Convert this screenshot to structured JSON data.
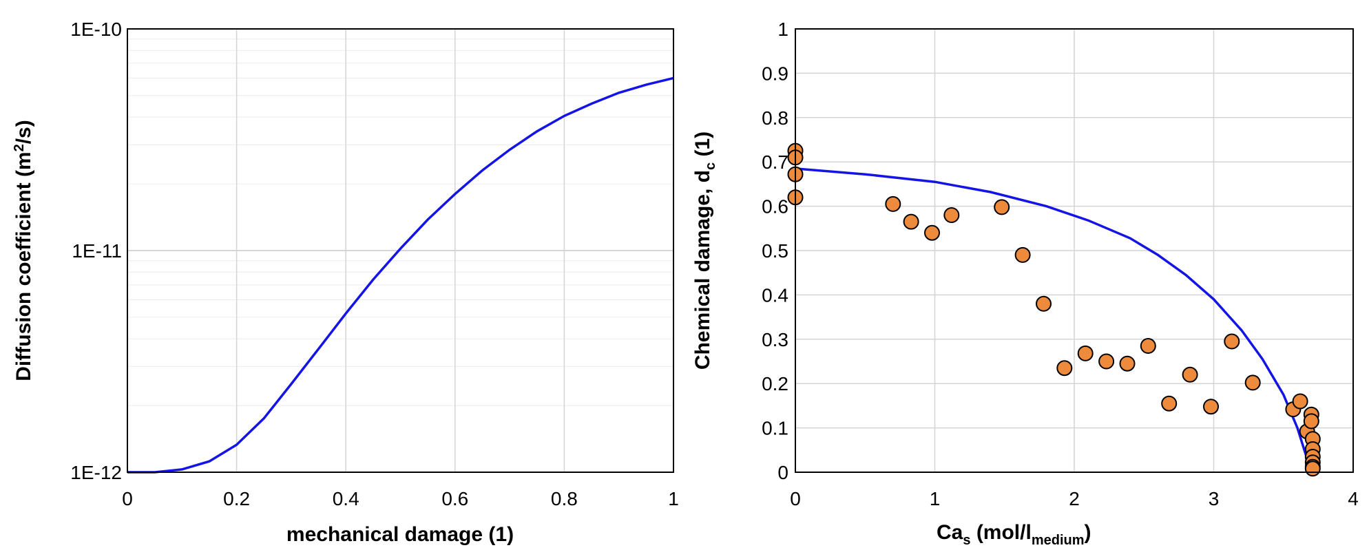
{
  "chart_data": [
    {
      "type": "line",
      "xlabel": "mechanical damage (1)",
      "ylabel": {
        "main": "Diffusion coefficient (m",
        "sup": "2",
        "tail": "/s)"
      },
      "xlim": [
        0,
        1
      ],
      "ylim": [
        1e-12,
        1e-10
      ],
      "yscale": "log",
      "x_ticks": [
        "0",
        "0.2",
        "0.4",
        "0.6",
        "0.8",
        "1"
      ],
      "y_ticks": [
        "1E-12",
        "1E-11",
        "1E-10"
      ],
      "grid": true,
      "line_color": "#1414e6",
      "series": [
        {
          "x": [
            0,
            0.05,
            0.1,
            0.15,
            0.2,
            0.25,
            0.3,
            0.35,
            0.4,
            0.45,
            0.5,
            0.55,
            0.6,
            0.65,
            0.7,
            0.75,
            0.8,
            0.85,
            0.9,
            0.95,
            1.0
          ],
          "values": [
            1e-12,
            1e-12,
            1.03e-12,
            1.12e-12,
            1.33e-12,
            1.75e-12,
            2.5e-12,
            3.6e-12,
            5.2e-12,
            7.4e-12,
            1.02e-11,
            1.38e-11,
            1.8e-11,
            2.3e-11,
            2.85e-11,
            3.45e-11,
            4.05e-11,
            4.6e-11,
            5.15e-11,
            5.6e-11,
            6e-11
          ]
        }
      ]
    },
    {
      "type": "scatter",
      "xlabel": {
        "main": "Ca",
        "sub": "s",
        "mid": " (mol/l",
        "sub2": "medium",
        "tail": ")"
      },
      "ylabel": {
        "main": "Chemical damage, d",
        "sub": "c",
        "tail": " (1)"
      },
      "xlim": [
        0,
        4
      ],
      "ylim": [
        0,
        1
      ],
      "x_ticks": [
        "0",
        "1",
        "2",
        "3",
        "4"
      ],
      "y_ticks": [
        "0",
        "0.1",
        "0.2",
        "0.3",
        "0.4",
        "0.5",
        "0.6",
        "0.7",
        "0.8",
        "0.9",
        "1"
      ],
      "grid": true,
      "line_color": "#1414e6",
      "marker_color": "#ee8a3c",
      "line": {
        "x": [
          0,
          0.5,
          1.0,
          1.4,
          1.8,
          2.1,
          2.4,
          2.6,
          2.8,
          3.0,
          3.2,
          3.35,
          3.5,
          3.6,
          3.65,
          3.7
        ],
        "y": [
          0.685,
          0.672,
          0.655,
          0.632,
          0.6,
          0.568,
          0.528,
          0.49,
          0.445,
          0.39,
          0.32,
          0.255,
          0.175,
          0.1,
          0.05,
          0.0
        ]
      },
      "points": {
        "x": [
          0,
          0,
          0,
          0,
          0.7,
          0.83,
          0.98,
          1.12,
          1.48,
          1.63,
          1.78,
          1.93,
          2.08,
          2.23,
          2.38,
          2.53,
          2.68,
          2.83,
          2.98,
          3.13,
          3.28,
          3.57,
          3.62,
          3.67,
          3.7,
          3.7,
          3.71,
          3.71,
          3.71,
          3.71,
          3.71,
          3.71
        ],
        "y": [
          0.725,
          0.71,
          0.672,
          0.62,
          0.605,
          0.565,
          0.54,
          0.58,
          0.598,
          0.49,
          0.38,
          0.235,
          0.268,
          0.25,
          0.245,
          0.285,
          0.155,
          0.22,
          0.148,
          0.295,
          0.202,
          0.142,
          0.16,
          0.092,
          0.13,
          0.115,
          0.075,
          0.052,
          0.035,
          0.022,
          0.012,
          0.008
        ]
      }
    }
  ]
}
